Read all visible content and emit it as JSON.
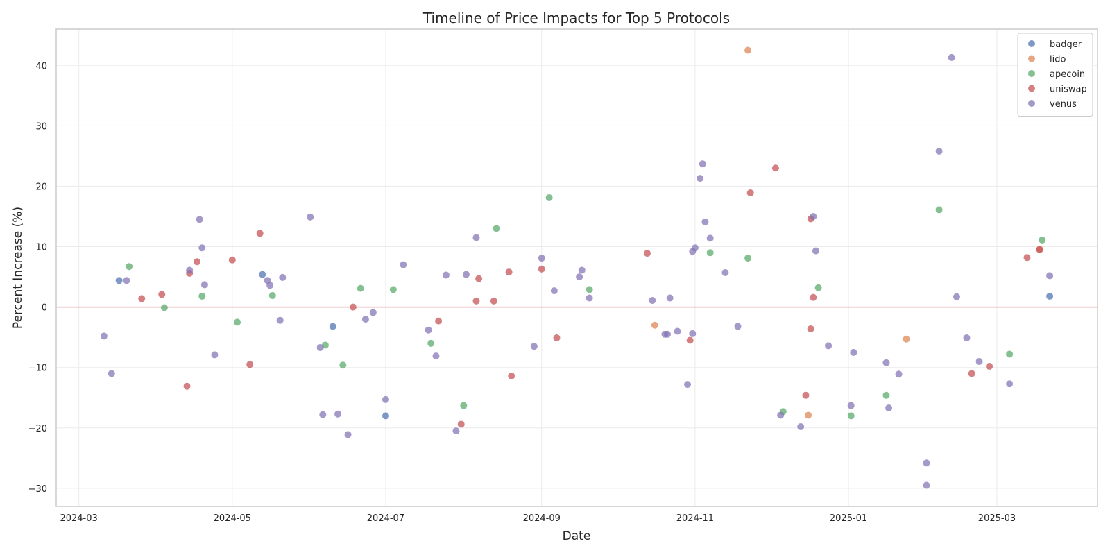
{
  "chart_data": {
    "type": "scatter",
    "title": "Timeline of Price Impacts for Top 5 Protocols",
    "xlabel": "Date",
    "ylabel": "Percent Increase (%)",
    "xlim": [
      "2024-02-21",
      "2025-04-10"
    ],
    "ylim": [
      -33,
      46
    ],
    "x_ticks": [
      "2024-03-01",
      "2024-05-01",
      "2024-07-01",
      "2024-09-01",
      "2024-11-01",
      "2025-01-01",
      "2025-03-01"
    ],
    "x_tick_labels": [
      "2024-03",
      "2024-05",
      "2024-07",
      "2024-09",
      "2024-11",
      "2025-01",
      "2025-03"
    ],
    "y_ticks": [
      -30,
      -20,
      -10,
      0,
      10,
      20,
      30,
      40
    ],
    "y_tick_labels": [
      "−30",
      "−20",
      "−10",
      "0",
      "10",
      "20",
      "30",
      "40"
    ],
    "grid": true,
    "reference_line": 0,
    "legend_position": "top-right",
    "series": [
      {
        "name": "badger",
        "color": "#4c72b0",
        "points": [
          [
            "2024-03-17",
            4.4
          ],
          [
            "2024-05-13",
            5.4
          ],
          [
            "2024-06-10",
            -3.2
          ],
          [
            "2024-07-01",
            -18.0
          ],
          [
            "2025-03-22",
            1.8
          ]
        ]
      },
      {
        "name": "lido",
        "color": "#dd8452",
        "points": [
          [
            "2024-10-16",
            -3.0
          ],
          [
            "2024-11-22",
            42.5
          ],
          [
            "2024-12-16",
            -17.9
          ],
          [
            "2025-01-24",
            -5.3
          ],
          [
            "2025-03-18",
            9.6
          ]
        ]
      },
      {
        "name": "apecoin",
        "color": "#55a868",
        "points": [
          [
            "2024-03-21",
            6.7
          ],
          [
            "2024-04-04",
            -0.1
          ],
          [
            "2024-04-19",
            1.8
          ],
          [
            "2024-05-03",
            -2.5
          ],
          [
            "2024-05-17",
            1.9
          ],
          [
            "2024-06-07",
            -6.3
          ],
          [
            "2024-06-14",
            -9.6
          ],
          [
            "2024-06-21",
            3.1
          ],
          [
            "2024-07-04",
            2.9
          ],
          [
            "2024-07-19",
            -6.0
          ],
          [
            "2024-08-01",
            -16.3
          ],
          [
            "2024-08-14",
            13.0
          ],
          [
            "2024-09-04",
            18.1
          ],
          [
            "2024-09-20",
            2.9
          ],
          [
            "2024-11-07",
            9.0
          ],
          [
            "2024-11-22",
            8.1
          ],
          [
            "2024-12-06",
            -17.3
          ],
          [
            "2024-12-20",
            3.2
          ],
          [
            "2025-01-02",
            -18.0
          ],
          [
            "2025-01-16",
            -14.6
          ],
          [
            "2025-02-06",
            16.1
          ],
          [
            "2025-03-19",
            11.1
          ],
          [
            "2025-03-06",
            -7.8
          ]
        ]
      },
      {
        "name": "uniswap",
        "color": "#c44e52",
        "points": [
          [
            "2024-03-26",
            1.4
          ],
          [
            "2024-04-03",
            2.1
          ],
          [
            "2024-04-13",
            -13.1
          ],
          [
            "2024-04-14",
            5.6
          ],
          [
            "2024-04-17",
            7.5
          ],
          [
            "2024-05-01",
            7.8
          ],
          [
            "2024-05-08",
            -9.5
          ],
          [
            "2024-05-12",
            12.2
          ],
          [
            "2024-06-18",
            0.0
          ],
          [
            "2024-07-22",
            -2.3
          ],
          [
            "2024-07-31",
            -19.4
          ],
          [
            "2024-08-06",
            1.0
          ],
          [
            "2024-08-07",
            4.7
          ],
          [
            "2024-08-13",
            1.0
          ],
          [
            "2024-08-19",
            5.8
          ],
          [
            "2024-08-20",
            -11.4
          ],
          [
            "2024-09-01",
            6.3
          ],
          [
            "2024-09-07",
            -5.1
          ],
          [
            "2024-10-13",
            8.9
          ],
          [
            "2024-10-30",
            -5.5
          ],
          [
            "2024-11-23",
            18.9
          ],
          [
            "2024-12-03",
            23.0
          ],
          [
            "2024-12-15",
            -14.6
          ],
          [
            "2024-12-17",
            -3.6
          ],
          [
            "2024-12-17",
            14.6
          ],
          [
            "2024-12-18",
            1.6
          ],
          [
            "2025-02-19",
            -11.0
          ],
          [
            "2025-02-26",
            -9.8
          ],
          [
            "2025-03-13",
            8.2
          ],
          [
            "2025-03-18",
            9.5
          ]
        ]
      },
      {
        "name": "venus",
        "color": "#8172b3",
        "points": [
          [
            "2024-03-11",
            -4.8
          ],
          [
            "2024-03-14",
            -11.0
          ],
          [
            "2024-03-20",
            4.4
          ],
          [
            "2024-04-14",
            6.1
          ],
          [
            "2024-04-18",
            14.5
          ],
          [
            "2024-04-19",
            9.8
          ],
          [
            "2024-04-20",
            3.7
          ],
          [
            "2024-04-24",
            -7.9
          ],
          [
            "2024-05-15",
            4.4
          ],
          [
            "2024-05-16",
            3.6
          ],
          [
            "2024-05-20",
            -2.2
          ],
          [
            "2024-05-21",
            4.9
          ],
          [
            "2024-06-01",
            14.9
          ],
          [
            "2024-06-05",
            -6.7
          ],
          [
            "2024-06-06",
            -17.8
          ],
          [
            "2024-06-12",
            -17.7
          ],
          [
            "2024-06-16",
            -21.1
          ],
          [
            "2024-06-23",
            -2.0
          ],
          [
            "2024-06-26",
            -0.9
          ],
          [
            "2024-07-01",
            -15.3
          ],
          [
            "2024-07-08",
            7.0
          ],
          [
            "2024-07-18",
            -3.8
          ],
          [
            "2024-07-21",
            -8.1
          ],
          [
            "2024-07-25",
            5.3
          ],
          [
            "2024-07-29",
            -20.5
          ],
          [
            "2024-08-02",
            5.4
          ],
          [
            "2024-08-06",
            11.5
          ],
          [
            "2024-08-29",
            -6.5
          ],
          [
            "2024-09-01",
            8.1
          ],
          [
            "2024-09-06",
            2.7
          ],
          [
            "2024-09-16",
            5.0
          ],
          [
            "2024-09-17",
            6.1
          ],
          [
            "2024-09-20",
            1.5
          ],
          [
            "2024-10-15",
            1.1
          ],
          [
            "2024-10-20",
            -4.5
          ],
          [
            "2024-10-21",
            -4.5
          ],
          [
            "2024-10-22",
            1.5
          ],
          [
            "2024-10-25",
            -4.0
          ],
          [
            "2024-10-29",
            -12.8
          ],
          [
            "2024-10-31",
            -4.4
          ],
          [
            "2024-10-31",
            9.2
          ],
          [
            "2024-11-01",
            9.8
          ],
          [
            "2024-11-03",
            21.3
          ],
          [
            "2024-11-04",
            23.7
          ],
          [
            "2024-11-05",
            14.1
          ],
          [
            "2024-11-07",
            11.4
          ],
          [
            "2024-11-13",
            5.7
          ],
          [
            "2024-11-18",
            -3.2
          ],
          [
            "2024-12-05",
            -17.9
          ],
          [
            "2024-12-13",
            -19.8
          ],
          [
            "2024-12-18",
            15.0
          ],
          [
            "2024-12-19",
            9.3
          ],
          [
            "2024-12-24",
            -6.4
          ],
          [
            "2025-01-02",
            -16.3
          ],
          [
            "2025-01-03",
            -7.5
          ],
          [
            "2025-01-16",
            -9.2
          ],
          [
            "2025-01-17",
            -16.7
          ],
          [
            "2025-01-21",
            -11.1
          ],
          [
            "2025-02-01",
            -25.8
          ],
          [
            "2025-02-01",
            -29.5
          ],
          [
            "2025-02-06",
            25.8
          ],
          [
            "2025-02-11",
            41.3
          ],
          [
            "2025-02-13",
            1.7
          ],
          [
            "2025-02-17",
            -5.1
          ],
          [
            "2025-02-22",
            -9.0
          ],
          [
            "2025-03-06",
            -12.7
          ],
          [
            "2025-03-22",
            5.2
          ]
        ]
      }
    ]
  }
}
